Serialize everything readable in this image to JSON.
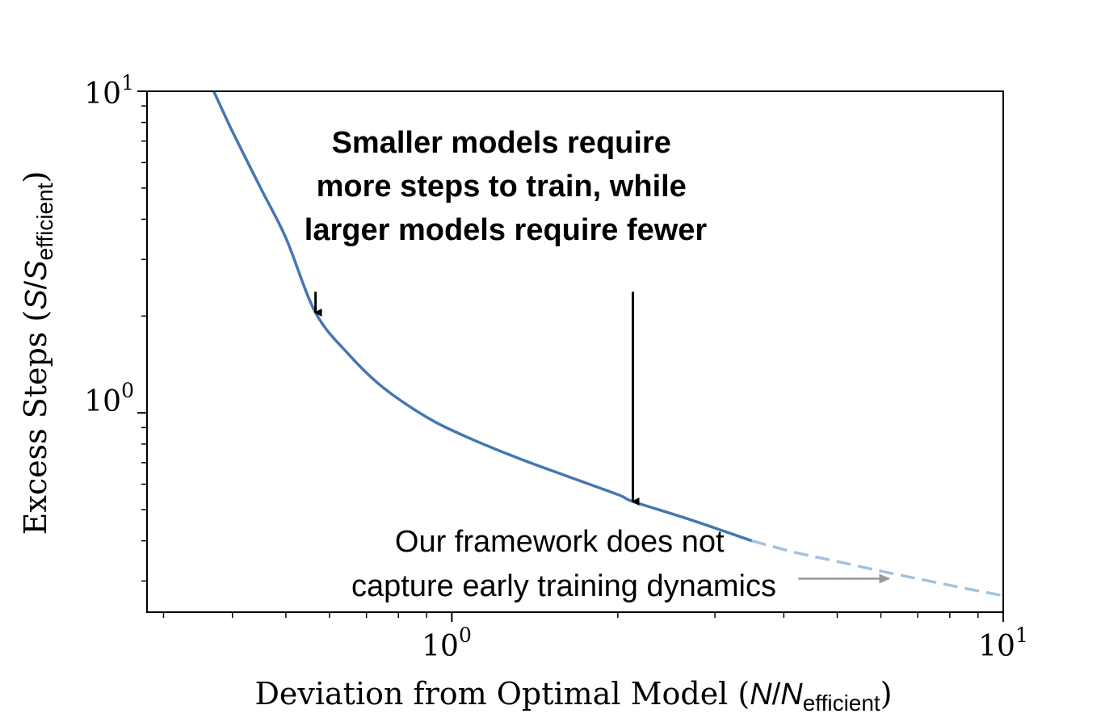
{
  "chart_data": {
    "type": "line",
    "title": "",
    "xlabel": {
      "prefix": "Deviation from Optimal Model (",
      "var1": "N",
      "slash": "/",
      "var2": "N",
      "subscript": "efficient",
      "suffix": ")"
    },
    "ylabel": {
      "prefix": "Excess Steps (",
      "var1": "S",
      "slash": "/",
      "var2": "S",
      "subscript": "efficient",
      "suffix": ")"
    },
    "xscale": "log",
    "yscale": "log",
    "xlim": [
      0.28,
      10
    ],
    "ylim": [
      0.24,
      10
    ],
    "xticks": [
      {
        "value": 1,
        "base": "10",
        "exp": "0"
      },
      {
        "value": 10,
        "base": "10",
        "exp": "1"
      }
    ],
    "yticks": [
      {
        "value": 1,
        "base": "10",
        "exp": "0"
      },
      {
        "value": 10,
        "base": "10",
        "exp": "1"
      }
    ],
    "grid": false,
    "series": [
      {
        "style": "solid",
        "color": "#4477b3",
        "x": [
          0.37,
          0.4,
          0.45,
          0.5,
          0.566,
          0.65,
          0.75,
          0.9,
          1.05,
          1.3,
          1.6,
          2.0,
          2.13,
          2.6,
          3.1,
          3.5
        ],
        "y": [
          10.0,
          7.5,
          5.0,
          3.5,
          2.05,
          1.52,
          1.2,
          0.97,
          0.85,
          0.73,
          0.64,
          0.557,
          0.53,
          0.476,
          0.43,
          0.4
        ]
      },
      {
        "style": "dashed",
        "color": "#a3c1df",
        "x": [
          3.5,
          4.2,
          5.0,
          6.0,
          7.0,
          8.5,
          10.0
        ],
        "y": [
          0.4,
          0.368,
          0.345,
          0.322,
          0.305,
          0.285,
          0.27
        ]
      }
    ],
    "annotations": [
      {
        "text_lines": [
          "Smaller models require",
          "more steps to train, while",
          "larger models require fewer"
        ],
        "weight": "bold",
        "arrows": [
          {
            "from": [
              0.566,
              2.38
            ],
            "to": [
              0.566,
              2.05
            ],
            "color": "#000000"
          },
          {
            "from": [
              2.13,
              2.38
            ],
            "to": [
              2.13,
              0.53
            ],
            "color": "#000000"
          }
        ]
      },
      {
        "text_lines": [
          "Our framework does not",
          "capture early training dynamics"
        ],
        "weight": "normal",
        "arrows": [
          {
            "from": [
              4.25,
              0.305
            ],
            "to": [
              6.2,
              0.305
            ],
            "color": "#999999"
          }
        ]
      }
    ]
  }
}
